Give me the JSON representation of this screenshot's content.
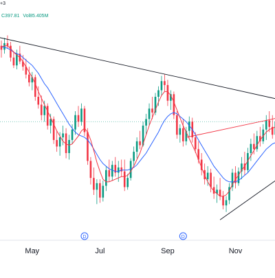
{
  "legend": {
    "symbol_fragment": "+3",
    "close_text": "C397.81",
    "volume_text": "Vol85.405M",
    "up_color": "#089981",
    "down_color": "#f23645"
  },
  "chart_data": {
    "type": "candlestick",
    "title": "",
    "xlabel": "",
    "ylabel": "",
    "x_tick_labels": [
      "May",
      "Jul",
      "Sep",
      "Nov"
    ],
    "event_markers": [
      "D",
      "D"
    ],
    "series": [
      {
        "name": "",
        "kind": "ohlc",
        "candles": [
          {
            "o": 486,
            "h": 490,
            "l": 477,
            "c": 483
          },
          {
            "o": 483,
            "h": 492,
            "l": 480,
            "c": 488
          },
          {
            "o": 488,
            "h": 494,
            "l": 484,
            "c": 486
          },
          {
            "o": 486,
            "h": 489,
            "l": 474,
            "c": 477
          },
          {
            "o": 477,
            "h": 482,
            "l": 469,
            "c": 471
          },
          {
            "o": 471,
            "h": 483,
            "l": 468,
            "c": 480
          },
          {
            "o": 480,
            "h": 486,
            "l": 472,
            "c": 474
          },
          {
            "o": 474,
            "h": 479,
            "l": 467,
            "c": 470
          },
          {
            "o": 470,
            "h": 476,
            "l": 461,
            "c": 464
          },
          {
            "o": 464,
            "h": 470,
            "l": 455,
            "c": 458
          },
          {
            "o": 458,
            "h": 466,
            "l": 452,
            "c": 462
          },
          {
            "o": 462,
            "h": 464,
            "l": 444,
            "c": 447
          },
          {
            "o": 447,
            "h": 455,
            "l": 438,
            "c": 441
          },
          {
            "o": 441,
            "h": 448,
            "l": 429,
            "c": 433
          },
          {
            "o": 433,
            "h": 444,
            "l": 428,
            "c": 440
          },
          {
            "o": 440,
            "h": 442,
            "l": 422,
            "c": 425
          },
          {
            "o": 425,
            "h": 434,
            "l": 419,
            "c": 430
          },
          {
            "o": 430,
            "h": 432,
            "l": 411,
            "c": 414
          },
          {
            "o": 414,
            "h": 421,
            "l": 405,
            "c": 409
          },
          {
            "o": 409,
            "h": 420,
            "l": 402,
            "c": 416
          },
          {
            "o": 416,
            "h": 425,
            "l": 410,
            "c": 419
          },
          {
            "o": 419,
            "h": 423,
            "l": 400,
            "c": 404
          },
          {
            "o": 404,
            "h": 418,
            "l": 399,
            "c": 414
          },
          {
            "o": 414,
            "h": 426,
            "l": 411,
            "c": 422
          },
          {
            "o": 422,
            "h": 436,
            "l": 418,
            "c": 433
          },
          {
            "o": 433,
            "h": 440,
            "l": 424,
            "c": 428
          },
          {
            "o": 428,
            "h": 442,
            "l": 425,
            "c": 438
          },
          {
            "o": 438,
            "h": 440,
            "l": 417,
            "c": 420
          },
          {
            "o": 420,
            "h": 423,
            "l": 395,
            "c": 398
          },
          {
            "o": 398,
            "h": 401,
            "l": 380,
            "c": 385
          },
          {
            "o": 385,
            "h": 393,
            "l": 372,
            "c": 376
          },
          {
            "o": 376,
            "h": 384,
            "l": 365,
            "c": 381
          },
          {
            "o": 381,
            "h": 384,
            "l": 366,
            "c": 370
          },
          {
            "o": 370,
            "h": 383,
            "l": 367,
            "c": 379
          },
          {
            "o": 379,
            "h": 394,
            "l": 375,
            "c": 391
          },
          {
            "o": 391,
            "h": 399,
            "l": 382,
            "c": 386
          },
          {
            "o": 386,
            "h": 398,
            "l": 383,
            "c": 395
          },
          {
            "o": 395,
            "h": 401,
            "l": 386,
            "c": 389
          },
          {
            "o": 389,
            "h": 398,
            "l": 382,
            "c": 393
          },
          {
            "o": 393,
            "h": 399,
            "l": 386,
            "c": 390
          },
          {
            "o": 390,
            "h": 399,
            "l": 375,
            "c": 378
          },
          {
            "o": 378,
            "h": 388,
            "l": 376,
            "c": 385
          },
          {
            "o": 385,
            "h": 400,
            "l": 383,
            "c": 398
          },
          {
            "o": 398,
            "h": 409,
            "l": 394,
            "c": 405
          },
          {
            "o": 405,
            "h": 416,
            "l": 400,
            "c": 413
          },
          {
            "o": 413,
            "h": 421,
            "l": 407,
            "c": 410
          },
          {
            "o": 410,
            "h": 428,
            "l": 409,
            "c": 425
          },
          {
            "o": 425,
            "h": 434,
            "l": 418,
            "c": 430
          },
          {
            "o": 430,
            "h": 442,
            "l": 425,
            "c": 438
          },
          {
            "o": 438,
            "h": 447,
            "l": 430,
            "c": 435
          },
          {
            "o": 435,
            "h": 450,
            "l": 433,
            "c": 447
          },
          {
            "o": 447,
            "h": 455,
            "l": 440,
            "c": 452
          },
          {
            "o": 452,
            "h": 463,
            "l": 448,
            "c": 459
          },
          {
            "o": 459,
            "h": 464,
            "l": 451,
            "c": 456
          },
          {
            "o": 456,
            "h": 460,
            "l": 440,
            "c": 444
          },
          {
            "o": 444,
            "h": 452,
            "l": 437,
            "c": 449
          },
          {
            "o": 449,
            "h": 451,
            "l": 430,
            "c": 433
          },
          {
            "o": 433,
            "h": 436,
            "l": 415,
            "c": 418
          },
          {
            "o": 418,
            "h": 426,
            "l": 412,
            "c": 423
          },
          {
            "o": 423,
            "h": 430,
            "l": 409,
            "c": 413
          },
          {
            "o": 413,
            "h": 424,
            "l": 410,
            "c": 421
          },
          {
            "o": 421,
            "h": 432,
            "l": 416,
            "c": 428
          },
          {
            "o": 428,
            "h": 431,
            "l": 412,
            "c": 416
          },
          {
            "o": 416,
            "h": 420,
            "l": 404,
            "c": 407
          },
          {
            "o": 407,
            "h": 413,
            "l": 396,
            "c": 399
          },
          {
            "o": 399,
            "h": 404,
            "l": 387,
            "c": 391
          },
          {
            "o": 391,
            "h": 396,
            "l": 380,
            "c": 384
          },
          {
            "o": 384,
            "h": 394,
            "l": 379,
            "c": 389
          },
          {
            "o": 389,
            "h": 392,
            "l": 374,
            "c": 378
          },
          {
            "o": 378,
            "h": 386,
            "l": 369,
            "c": 373
          },
          {
            "o": 373,
            "h": 380,
            "l": 366,
            "c": 376
          },
          {
            "o": 376,
            "h": 385,
            "l": 368,
            "c": 371
          },
          {
            "o": 371,
            "h": 375,
            "l": 361,
            "c": 364
          },
          {
            "o": 364,
            "h": 371,
            "l": 359,
            "c": 368
          },
          {
            "o": 368,
            "h": 381,
            "l": 365,
            "c": 378
          },
          {
            "o": 378,
            "h": 392,
            "l": 375,
            "c": 389
          },
          {
            "o": 389,
            "h": 394,
            "l": 377,
            "c": 381
          },
          {
            "o": 381,
            "h": 393,
            "l": 379,
            "c": 390
          },
          {
            "o": 390,
            "h": 401,
            "l": 384,
            "c": 396
          },
          {
            "o": 396,
            "h": 405,
            "l": 387,
            "c": 391
          },
          {
            "o": 391,
            "h": 408,
            "l": 389,
            "c": 404
          },
          {
            "o": 404,
            "h": 415,
            "l": 398,
            "c": 411
          },
          {
            "o": 411,
            "h": 419,
            "l": 403,
            "c": 407
          },
          {
            "o": 407,
            "h": 421,
            "l": 405,
            "c": 417
          },
          {
            "o": 417,
            "h": 424,
            "l": 409,
            "c": 413
          },
          {
            "o": 413,
            "h": 426,
            "l": 411,
            "c": 422
          },
          {
            "o": 422,
            "h": 433,
            "l": 414,
            "c": 429
          },
          {
            "o": 429,
            "h": 436,
            "l": 420,
            "c": 424
          },
          {
            "o": 424,
            "h": 433,
            "l": 415,
            "c": 418
          },
          {
            "o": 418,
            "h": 431,
            "l": 416,
            "c": 428
          }
        ]
      },
      {
        "name": "",
        "kind": "line",
        "color": "#2962ff",
        "values": [
          485,
          485,
          484,
          483,
          481,
          480,
          479,
          477,
          475,
          473,
          471,
          468,
          465,
          461,
          457,
          454,
          450,
          446,
          442,
          438,
          434,
          430,
          426,
          423,
          420,
          418,
          417,
          416,
          414,
          411,
          407,
          403,
          399,
          396,
          394,
          392,
          391,
          390,
          390,
          391,
          391,
          391,
          392,
          393,
          395,
          398,
          401,
          404,
          408,
          412,
          416,
          420,
          425,
          429,
          432,
          434,
          435,
          434,
          432,
          430,
          428,
          425,
          422,
          418,
          414,
          410,
          406,
          402,
          398,
          394,
          391,
          388,
          385,
          383,
          382,
          382,
          382,
          383,
          385,
          387,
          389,
          392,
          395,
          398,
          401,
          404,
          407,
          409,
          411,
          412,
          413
        ]
      },
      {
        "name": "",
        "kind": "line",
        "color": "#f23645",
        "values": [
          485,
          486,
          486,
          484,
          481,
          479,
          477,
          474,
          470,
          466,
          462,
          457,
          451,
          446,
          441,
          436,
          431,
          426,
          421,
          417,
          413,
          411,
          410,
          411,
          414,
          417,
          421,
          423,
          420,
          414,
          406,
          397,
          390,
          384,
          382,
          382,
          383,
          384,
          385,
          386,
          386,
          387,
          390,
          394,
          399,
          404,
          411,
          418,
          425,
          431,
          437,
          443,
          448,
          451,
          451,
          448,
          443,
          437,
          431,
          425,
          420,
          415,
          410,
          405,
          399,
          393,
          387,
          382,
          378,
          375,
          373,
          371,
          371,
          372,
          375,
          380,
          384,
          387,
          391,
          394,
          398,
          402,
          406,
          410,
          414,
          417,
          420,
          422,
          423,
          424,
          425
        ]
      }
    ],
    "ylim": [
      340,
      500
    ],
    "trendlines": [
      {
        "color": "#131722",
        "from": {
          "i": -2,
          "v": 493
        },
        "to": {
          "i": 92,
          "v": 444
        }
      },
      {
        "color": "#131722",
        "from": {
          "i": 71,
          "v": 353
        },
        "to": {
          "i": 92,
          "v": 388
        }
      },
      {
        "color": "#f23645",
        "from": {
          "i": 60,
          "v": 416
        },
        "to": {
          "i": 92,
          "v": 432
        }
      }
    ],
    "grid": false
  }
}
